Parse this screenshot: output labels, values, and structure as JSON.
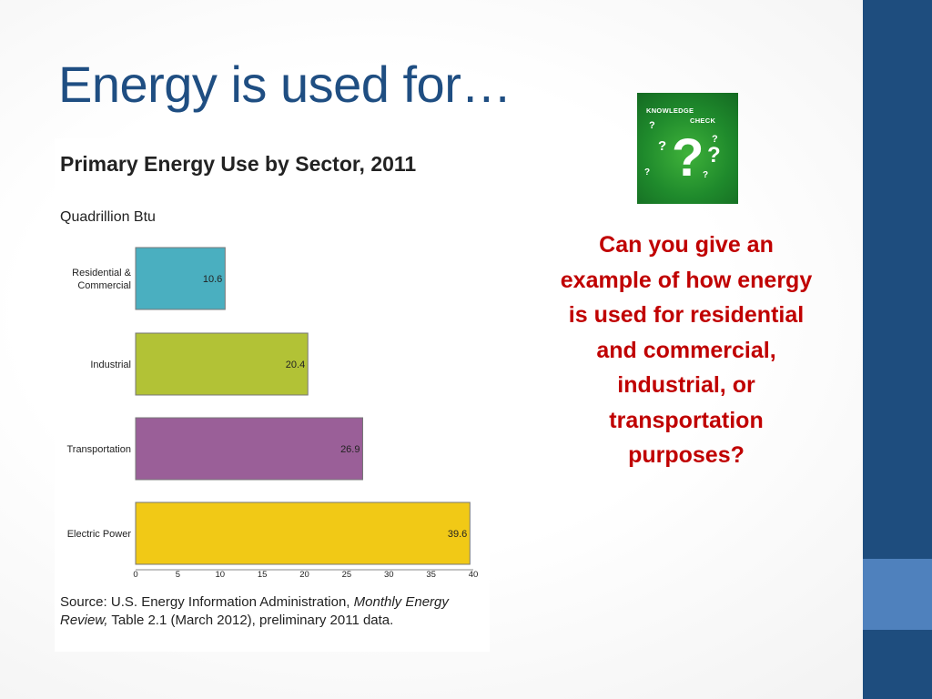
{
  "slide": {
    "title": "Energy is used for…",
    "question": "Can you give an example of how energy is used for residential and commercial, industrial, or transportation purposes?"
  },
  "icon": {
    "name": "knowledge-check-icon",
    "line1": "KNOWLEDGE",
    "line2": "CHECK",
    "mark": "?"
  },
  "chart_data": {
    "type": "bar",
    "orientation": "horizontal",
    "title": "Primary Energy Use by Sector, 2011",
    "unit_label": "Quadrillion Btu",
    "categories": [
      "Residential & Commercial",
      "Industrial",
      "Transportation",
      "Electric Power"
    ],
    "category_lines": [
      [
        "Residential &",
        "Commercial"
      ],
      [
        "Industrial"
      ],
      [
        "Transportation"
      ],
      [
        "Electric Power"
      ]
    ],
    "values": [
      10.6,
      20.4,
      26.9,
      39.6
    ],
    "value_labels": [
      "10.6",
      "20.4",
      "26.9",
      "39.6"
    ],
    "colors": [
      "#4aafc0",
      "#b2c236",
      "#9a5f98",
      "#f1c916"
    ],
    "xlim": [
      0,
      40
    ],
    "ticks": [
      0,
      5,
      10,
      15,
      20,
      25,
      30,
      35,
      40
    ],
    "grid": false,
    "source_prefix": "Source: U.S. Energy Information Administration, ",
    "source_italic": "Monthly Energy Review,",
    "source_suffix": " Table 2.1 (March 2012), preliminary 2011 data."
  }
}
